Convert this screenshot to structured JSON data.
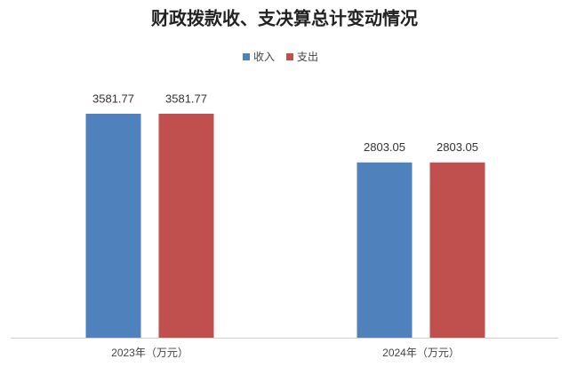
{
  "chart_data": {
    "type": "bar",
    "title": "财政拨款收、支决算总计变动情况",
    "categories": [
      "2023年（万元）",
      "2024年（万元）"
    ],
    "series": [
      {
        "name": "收入",
        "color": "#4f81bd",
        "values": [
          3581.77,
          2803.05
        ]
      },
      {
        "name": "支出",
        "color": "#c0504d",
        "values": [
          3581.77,
          2803.05
        ]
      }
    ],
    "legend": "top"
  }
}
